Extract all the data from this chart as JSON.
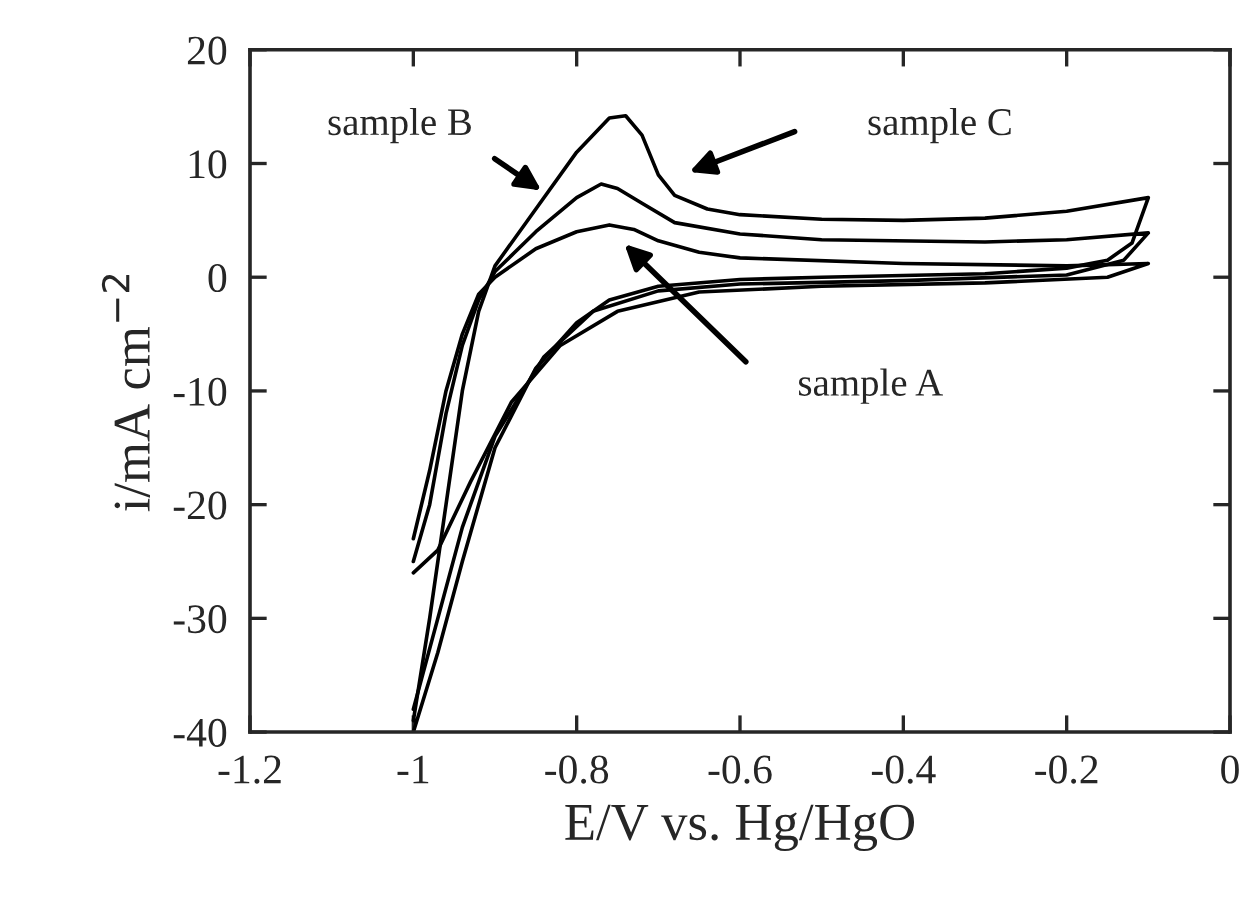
{
  "chart_data": {
    "type": "line",
    "xlabel": "E/V vs. Hg/HgO",
    "ylabel": "i/mA cm$^{−2}$",
    "xlim": [
      -1.2,
      0
    ],
    "ylim": [
      -40,
      20
    ],
    "xticks": [
      -1.2,
      -1,
      -0.8,
      -0.6,
      -0.4,
      -0.2,
      0
    ],
    "yticks": [
      -40,
      -30,
      -20,
      -10,
      0,
      10,
      20
    ],
    "grid": false,
    "legend": false,
    "marker": "none",
    "line_style": "solid",
    "series": [
      {
        "color": "#000000",
        "x": [
          -1.0,
          -0.98,
          -0.96,
          -0.94,
          -0.92,
          -0.9,
          -0.85,
          -0.8,
          -0.76,
          -0.73,
          -0.7,
          -0.65,
          -0.6,
          -0.4,
          -0.2,
          -0.1,
          -0.15,
          -0.3,
          -0.5,
          -0.65,
          -0.75,
          -0.82,
          -0.88,
          -0.93,
          -0.97,
          -1.0
        ],
        "values": [
          -23,
          -17,
          -10,
          -5,
          -1.5,
          0,
          2.5,
          4,
          4.6,
          4.2,
          3.2,
          2.2,
          1.7,
          1.2,
          1.0,
          1.2,
          0,
          -0.5,
          -0.8,
          -1.3,
          -3,
          -6,
          -11,
          -18,
          -24,
          -26
        ]
      },
      {
        "color": "#000000",
        "x": [
          -1.0,
          -0.98,
          -0.96,
          -0.94,
          -0.92,
          -0.9,
          -0.85,
          -0.8,
          -0.77,
          -0.75,
          -0.72,
          -0.68,
          -0.6,
          -0.5,
          -0.3,
          -0.2,
          -0.1,
          -0.13,
          -0.2,
          -0.4,
          -0.6,
          -0.7,
          -0.78,
          -0.84,
          -0.9,
          -0.94,
          -0.97,
          -1.0
        ],
        "values": [
          -25,
          -20,
          -12,
          -6,
          -2,
          0.5,
          4,
          7,
          8.2,
          7.8,
          6.5,
          4.8,
          3.8,
          3.3,
          3.1,
          3.3,
          3.9,
          1.5,
          0.2,
          -0.3,
          -0.6,
          -1.2,
          -3,
          -7,
          -14,
          -22,
          -30,
          -38
        ]
      },
      {
        "color": "#000000",
        "x": [
          -1.0,
          -0.98,
          -0.96,
          -0.94,
          -0.92,
          -0.9,
          -0.85,
          -0.8,
          -0.76,
          -0.74,
          -0.72,
          -0.7,
          -0.68,
          -0.64,
          -0.6,
          -0.5,
          -0.4,
          -0.3,
          -0.2,
          -0.1,
          -0.12,
          -0.15,
          -0.2,
          -0.3,
          -0.5,
          -0.6,
          -0.7,
          -0.76,
          -0.8,
          -0.85,
          -0.9,
          -0.94,
          -0.97,
          -1.0
        ],
        "values": [
          -39,
          -30,
          -20,
          -10,
          -3,
          1,
          6,
          11,
          14,
          14.2,
          12.5,
          9,
          7.2,
          6,
          5.5,
          5.1,
          5.0,
          5.2,
          5.8,
          7,
          3,
          1.5,
          0.8,
          0.3,
          0,
          -0.2,
          -0.8,
          -2,
          -4,
          -8,
          -15,
          -25,
          -33,
          -40
        ]
      }
    ],
    "annotations": [
      "sample B",
      "sample C",
      "sample A"
    ]
  }
}
